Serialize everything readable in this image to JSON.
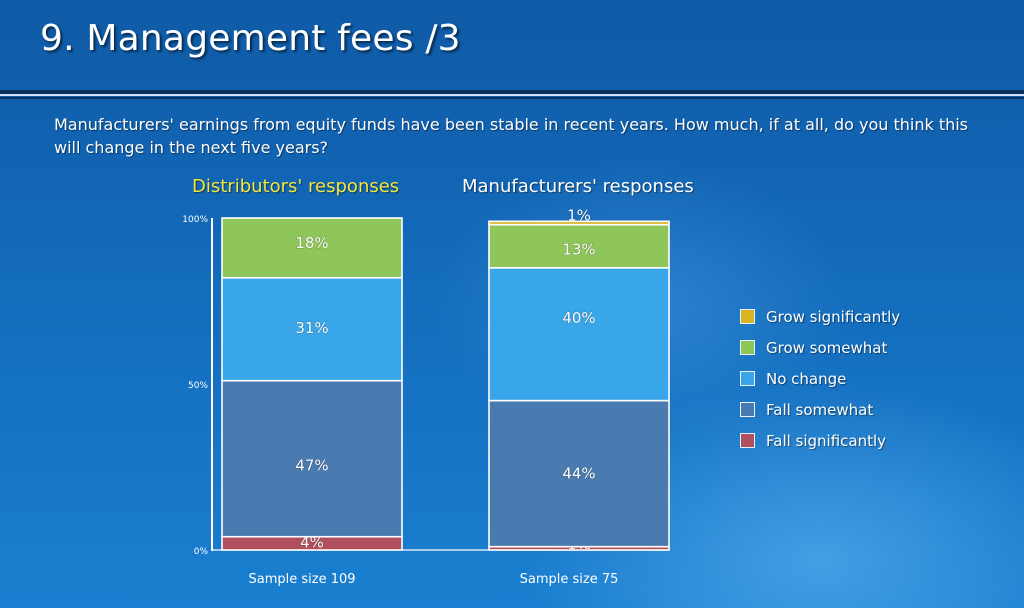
{
  "slide": {
    "title": "9. Management fees /3",
    "question": "Manufacturers' earnings from equity funds have been stable in recent years. How much, if at all, do you think this will change in the next five years?"
  },
  "colors": {
    "grow_significantly": "#d8b424",
    "grow_somewhat": "#8fc65a",
    "no_change": "#3aa6ea",
    "fall_somewhat": "#4a7bb0",
    "fall_significantly": "#b0505e"
  },
  "chart_data": {
    "type": "bar",
    "stacked": true,
    "ylim": [
      0,
      100
    ],
    "y_ticks": [
      "0%",
      "50%",
      "100%"
    ],
    "categories": [
      "Distributors' responses",
      "Manufacturers' responses"
    ],
    "category_notes": [
      "Sample size 109",
      "Sample size 75"
    ],
    "series": [
      {
        "name": "Fall significantly",
        "key": "fall_significantly",
        "values": [
          4,
          1
        ],
        "labels": [
          "4%",
          "1%"
        ]
      },
      {
        "name": "Fall somewhat",
        "key": "fall_somewhat",
        "values": [
          47,
          44
        ],
        "labels": [
          "47%",
          "44%"
        ]
      },
      {
        "name": "No change",
        "key": "no_change",
        "values": [
          31,
          40
        ],
        "labels": [
          "31%",
          "40%"
        ]
      },
      {
        "name": "Grow somewhat",
        "key": "grow_somewhat",
        "values": [
          18,
          13
        ],
        "labels": [
          "18%",
          "13%"
        ]
      },
      {
        "name": "Grow significantly",
        "key": "grow_significantly",
        "values": [
          0,
          1
        ],
        "labels": [
          "",
          "1%"
        ]
      }
    ],
    "legend_order": [
      "Grow significantly",
      "Grow somewhat",
      "No change",
      "Fall somewhat",
      "Fall significantly"
    ],
    "legend_position": "right"
  }
}
